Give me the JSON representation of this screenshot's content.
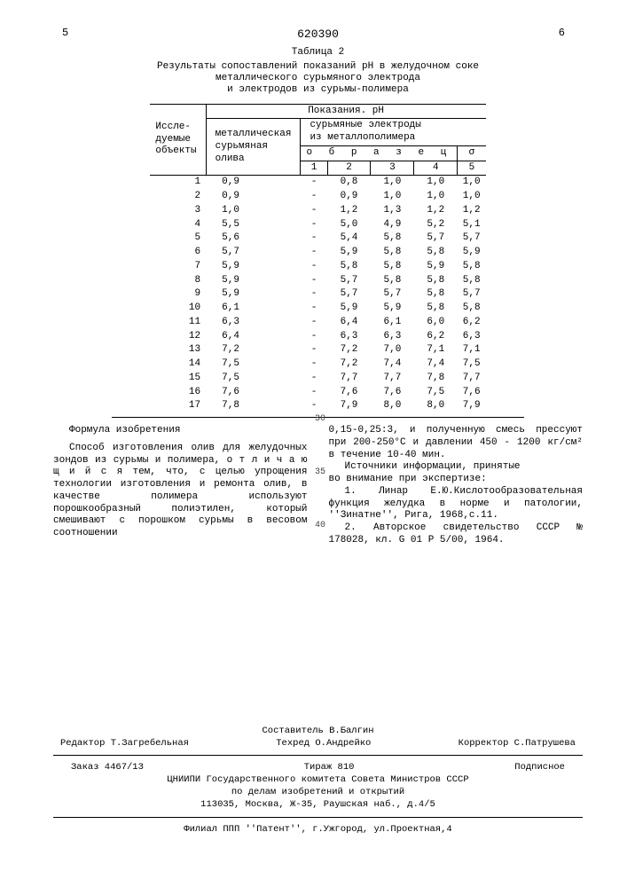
{
  "page": {
    "left_num": "5",
    "right_num": "6",
    "doc_num": "620390"
  },
  "table": {
    "label": "Таблица   2",
    "caption_l1": "Результаты сопоставлений показаний pH в желудочном соке",
    "caption_l2": "металлического сурьмяного электрода",
    "caption_l3": "и электродов из сурьмы-полимера",
    "head_objects_l1": "Иссле-",
    "head_objects_l2": "дуемые",
    "head_objects_l3": "объекты",
    "head_readings": "Показания. pH",
    "head_metal_l1": "металлическая",
    "head_metal_l2": "сурьмяная",
    "head_metal_l3": "олива",
    "head_poly_l1": "сурьмяные электроды",
    "head_poly_l2": "из  металлополимера",
    "head_sample": "о б р а з е ц",
    "head_sigma": "σ",
    "col_nums": [
      "1",
      "2",
      "3",
      "4",
      "5"
    ],
    "rows": [
      [
        "1",
        "0,9",
        "-",
        "0,8",
        "1,0",
        "1,0",
        "1,0"
      ],
      [
        "2",
        "0,9",
        "-",
        "0,9",
        "1,0",
        "1,0",
        "1,0"
      ],
      [
        "3",
        "1,0",
        "-",
        "1,2",
        "1,3",
        "1,2",
        "1,2"
      ],
      [
        "4",
        "5,5",
        "-",
        "5,0",
        "4,9",
        "5,2",
        "5,1"
      ],
      [
        "5",
        "5,6",
        "-",
        "5,4",
        "5,8",
        "5,7",
        "5,7"
      ],
      [
        "6",
        "5,7",
        "-",
        "5,9",
        "5,8",
        "5,8",
        "5,9"
      ],
      [
        "7",
        "5,9",
        "-",
        "5,8",
        "5,8",
        "5,9",
        "5,8"
      ],
      [
        "8",
        "5,9",
        "-",
        "5,7",
        "5,8",
        "5,8",
        "5,8"
      ],
      [
        "9",
        "5,9",
        "-",
        "5,7",
        "5,7",
        "5,8",
        "5,7"
      ],
      [
        "10",
        "6,1",
        "-",
        "5,9",
        "5,9",
        "5,8",
        "5,8"
      ],
      [
        "11",
        "6,3",
        "-",
        "6,4",
        "6,1",
        "6,0",
        "6,2"
      ],
      [
        "12",
        "6,4",
        "-",
        "6,3",
        "6,3",
        "6,2",
        "6,3"
      ],
      [
        "13",
        "7,2",
        "-",
        "7,2",
        "7,0",
        "7,1",
        "7,1"
      ],
      [
        "14",
        "7,5",
        "-",
        "7,2",
        "7,4",
        "7,4",
        "7,5"
      ],
      [
        "15",
        "7,5",
        "-",
        "7,7",
        "7,7",
        "7,8",
        "7,7"
      ],
      [
        "16",
        "7,6",
        "-",
        "7,6",
        "7,6",
        "7,5",
        "7,6"
      ],
      [
        "17",
        "7,8",
        "-",
        "7,9",
        "8,0",
        "8,0",
        "7,9"
      ]
    ]
  },
  "linenums": {
    "l30": "30",
    "l35": "35",
    "l40": "40"
  },
  "body": {
    "formula_title": "Формула изобретения",
    "left_p": "Способ изготовления олив для желудочных  зондов из сурьмы и полимера, о т л и ч а ю щ и й с я  тем, что, с целью упрощения технологии изготовления и ремонта олив, в качестве полимера используют порошкообразный полиэтилен, который смешивают с порошком сурьмы в весовом соотношении",
    "right_p1": "0,15-0,25:3, и полученную смесь прессуют при 200-250°С и давлении 450 - 1200 кг/см² в течение 10-40 мин.",
    "right_p2_l1": "Источники информации, принятые",
    "right_p2_l2": "во внимание при экспертизе:",
    "right_ref1": "1. Линар Е.Ю.Кислотообразовательная функция желудка в норме и патологии, ''Зинатне'', Рига, 1968,с.11.",
    "right_ref2": "2. Авторское свидетельство СССР № 178028, кл. G 01 P 5/00, 1964."
  },
  "footer": {
    "compiler": "Составитель В.Балгин",
    "editor": "Редактор Т.Загребельная",
    "tech": "Техред О.Андрейко",
    "corrector": "Корректор С.Патрушева",
    "order": "Заказ 4467/13",
    "tirage": "Тираж 810",
    "subscr": "Подписное",
    "org_l1": "ЦНИИПИ   Государственного комитета Совета Министров СССР",
    "org_l2": "по делам изобретений и открытий",
    "org_l3": "113035, Москва, Ж-35, Раушская наб., д.4/5",
    "branch": "Филиал ППП ''Патент'', г.Ужгород, ул.Проектная,4"
  }
}
